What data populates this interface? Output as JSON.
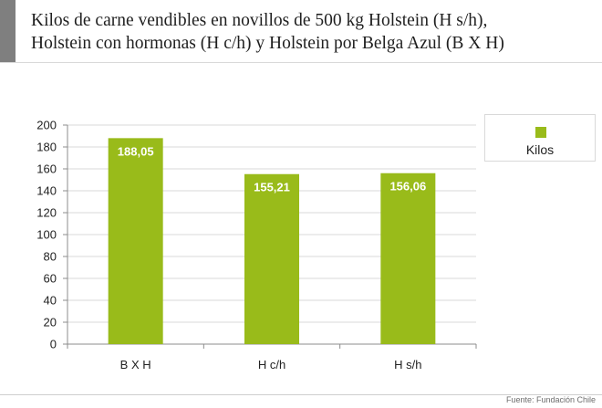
{
  "title": {
    "line1": "Kilos de carne vendibles en novillos de 500 kg Holstein (H s/h),",
    "line2": "Holstein con hormonas (H c/h) y Holstein por Belga Azul (B X H)"
  },
  "source": "Fuente: Fundación Chile",
  "colors": {
    "bar": "#99bb1a",
    "axis": "#8c8c8c",
    "grid": "#d9d9d9",
    "accent": "#7f7f7f"
  },
  "chart_data": {
    "type": "bar",
    "title": "Kilos de carne vendibles en novillos de 500 kg Holstein (H s/h), Holstein con hormonas (H c/h) y Holstein por Belga Azul (B X H)",
    "categories": [
      "B X H",
      "H c/h",
      "H s/h"
    ],
    "series": [
      {
        "name": "Kilos",
        "values": [
          188.05,
          155.21,
          156.06
        ],
        "labels": [
          "188,05",
          "155,21",
          "156,06"
        ]
      }
    ],
    "ylim": [
      0,
      200
    ],
    "yticks": [
      0,
      20,
      40,
      60,
      80,
      100,
      120,
      140,
      160,
      180,
      200
    ],
    "grid": true,
    "legend": "right"
  }
}
